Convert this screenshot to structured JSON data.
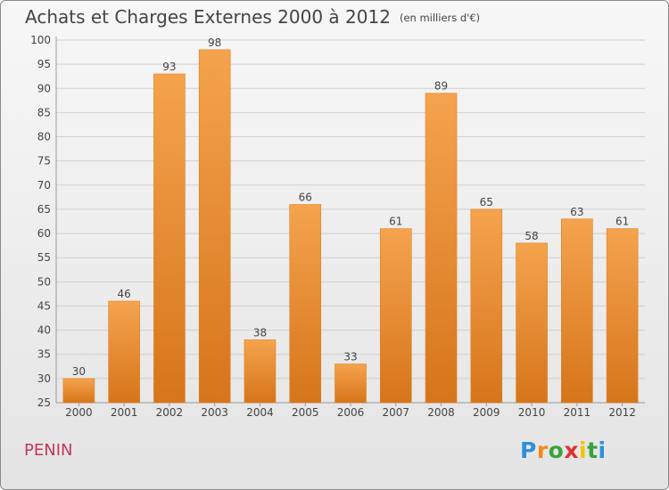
{
  "title": "Achats et Charges Externes 2000 à 2012",
  "unit_label": "(en milliers d'€)",
  "commune": "PENIN",
  "logo": {
    "letters": [
      "P",
      "r",
      "o",
      "x",
      "i",
      "t",
      "i"
    ],
    "colors": [
      "#2f8fd8",
      "#f28a1a",
      "#3aa33a",
      "#e03030",
      "#f5c400",
      "#3aa33a",
      "#2f8fd8"
    ]
  },
  "colors": {
    "bar_top": "#f5a34e",
    "bar_bottom": "#d6751a",
    "bar_edge": "#e07f1f",
    "grid": "#cfcfcf",
    "text": "#444444"
  },
  "chart_data": {
    "type": "bar",
    "categories": [
      "2000",
      "2001",
      "2002",
      "2003",
      "2004",
      "2005",
      "2006",
      "2007",
      "2008",
      "2009",
      "2010",
      "2011",
      "2012"
    ],
    "values": [
      30,
      46,
      93,
      98,
      38,
      66,
      33,
      61,
      89,
      65,
      58,
      63,
      61
    ],
    "ylim": [
      25,
      100
    ],
    "yticks": [
      25,
      30,
      35,
      40,
      45,
      50,
      55,
      60,
      65,
      70,
      75,
      80,
      85,
      90,
      95,
      100
    ],
    "grid": true
  }
}
